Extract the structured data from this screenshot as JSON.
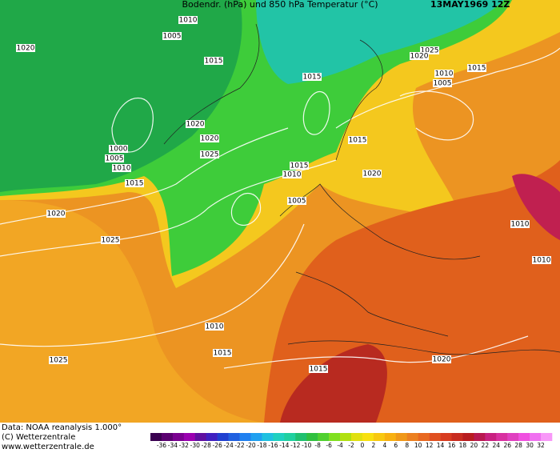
{
  "header": {
    "title": "Bodendr. (hPa) und 850 hPa Temperatur (°C)",
    "date": "13MAY1969 12Z"
  },
  "isobars": [
    "1010",
    "1005",
    "1020",
    "1015",
    "1015",
    "1020",
    "1020",
    "1000",
    "1005",
    "1010",
    "1025",
    "1015",
    "1020",
    "1025",
    "1015",
    "1010",
    "1005",
    "1015",
    "1020",
    "1025",
    "1020",
    "1015",
    "1010",
    "1005",
    "1010",
    "1010",
    "1010",
    "1015",
    "1025",
    "1015",
    "1020"
  ],
  "footer": {
    "source": "Data: NOAA reanalysis 1.000°",
    "copyright": "(C) Wetterzentrale",
    "url": "www.wetterzentrale.de"
  },
  "colorbar": {
    "labels": [
      -36,
      -34,
      -32,
      -30,
      -28,
      -26,
      -24,
      -22,
      -20,
      -18,
      -16,
      -14,
      -12,
      -10,
      -8,
      -6,
      -4,
      -2,
      0,
      2,
      4,
      6,
      8,
      10,
      12,
      14,
      16,
      18,
      20,
      22,
      24,
      26,
      28,
      30,
      32
    ]
  }
}
